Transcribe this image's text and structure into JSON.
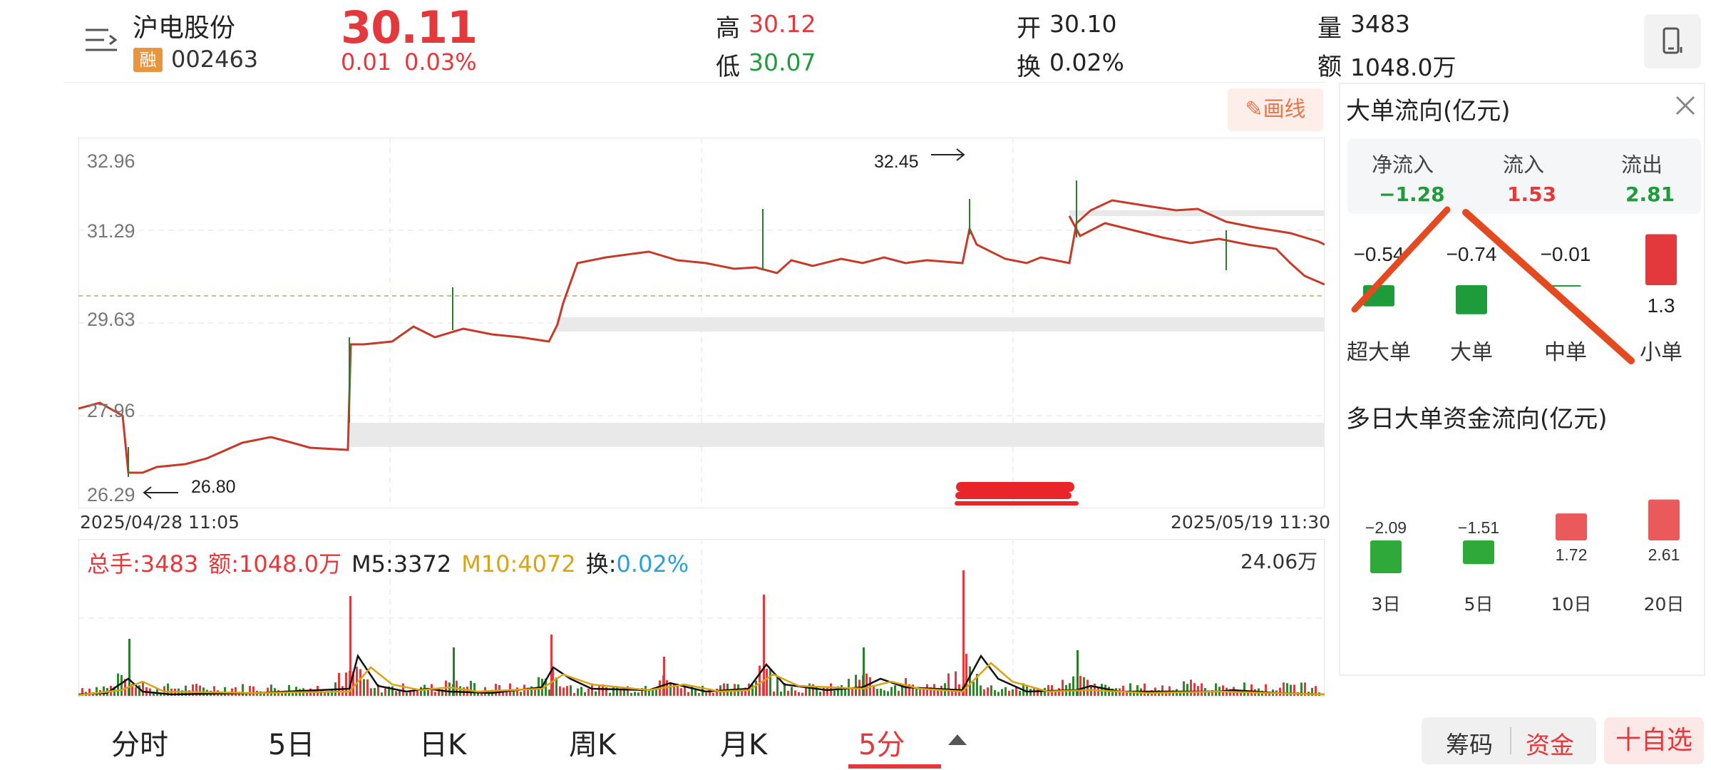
{
  "header": {
    "stock_name": "沪电股份",
    "badge": "融",
    "code": "002463",
    "price": "30.11",
    "change": "0.01",
    "change_pct": "0.03%",
    "high_label": "高",
    "high": "30.12",
    "low_label": "低",
    "low": "30.07",
    "open_label": "开",
    "open": "30.10",
    "turnover_label": "换",
    "turnover": "0.02%",
    "volume_label": "量",
    "volume": "3483",
    "amount_label": "额",
    "amount": "1048.0万"
  },
  "toolbar": {
    "draw_label": "画线"
  },
  "chart": {
    "y_ticks": [
      "32.96",
      "31.29",
      "29.63",
      "27.96",
      "26.29"
    ],
    "high_marker": "32.45",
    "low_marker": "26.80",
    "start_date": "2025/04/28 11:05",
    "end_date": "2025/05/19 11:30"
  },
  "volume": {
    "total_label": "总手:3483",
    "amount_label": "额:1048.0万",
    "m5_label": "M5:3372",
    "m10_label": "M10:4072",
    "turnover_label": "换:",
    "turnover_value": "0.02%",
    "max_label": "24.06万"
  },
  "tabs": [
    {
      "label": "分时"
    },
    {
      "label": "5日"
    },
    {
      "label": "日K"
    },
    {
      "label": "周K"
    },
    {
      "label": "月K"
    },
    {
      "label": "5分"
    }
  ],
  "bottom_buttons": {
    "chips": "筹码",
    "funds": "资金",
    "favorite": "十自选"
  },
  "flow_panel": {
    "title": "大单流向(亿元)",
    "net_inflow_label": "净流入",
    "net_inflow": "−1.28",
    "inflow_label": "流入",
    "inflow": "1.53",
    "outflow_label": "流出",
    "outflow": "2.81",
    "multi_day_title": "多日大单资金流向(亿元)"
  },
  "chart_data": [
    {
      "type": "bar",
      "categories": [
        "超大单",
        "大单",
        "中单",
        "小单"
      ],
      "values": [
        -0.54,
        -0.74,
        -0.01,
        1.3
      ],
      "value_labels": [
        "−0.54",
        "−0.74",
        "−0.01",
        "1.3"
      ]
    },
    {
      "type": "bar",
      "categories": [
        "3日",
        "5日",
        "10日",
        "20日"
      ],
      "values": [
        -2.09,
        -1.51,
        1.72,
        2.61
      ],
      "value_labels": [
        "−2.09",
        "−1.51",
        "1.72",
        "2.61"
      ]
    }
  ],
  "colors": {
    "up": "#e4393c",
    "down": "#1e9b3a",
    "accent": "#e6764a"
  }
}
